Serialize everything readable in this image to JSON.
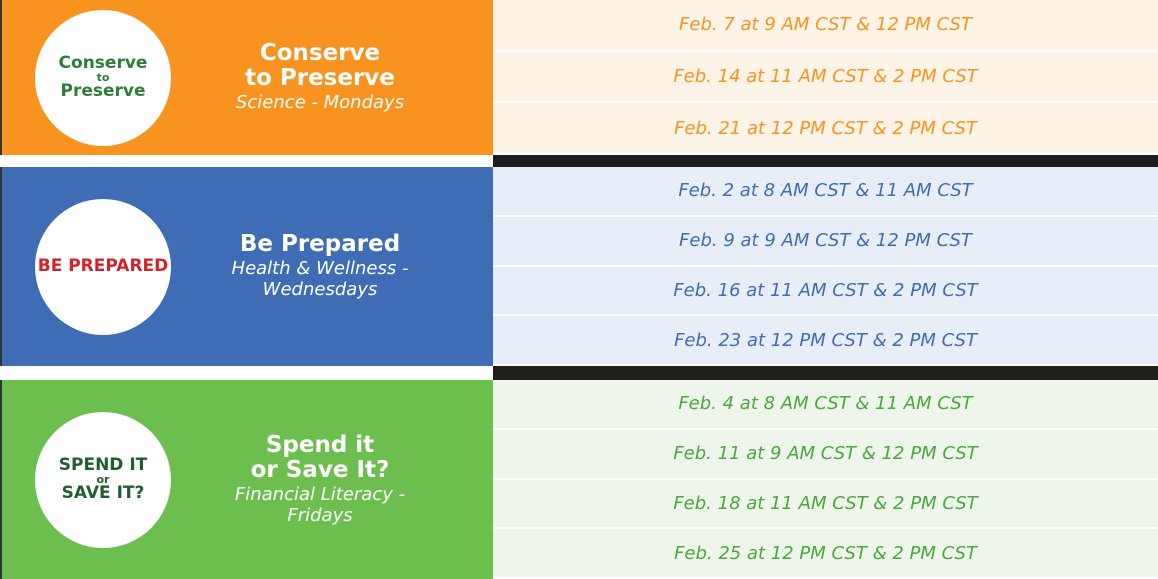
{
  "sections": [
    {
      "logo_lines": [
        "Conserve",
        "to",
        "Preserve"
      ],
      "title_lines": [
        "Conserve",
        "to Preserve"
      ],
      "subtitle": "Science - Mondays",
      "dates": [
        "Feb. 7 at 9 AM CST & 12 PM CST",
        "Feb. 14 at 11 AM CST & 2 PM CST",
        "Feb. 21 at 12 PM CST & 2 PM CST"
      ]
    },
    {
      "logo_lines": [
        "BE PREPARED"
      ],
      "title_lines": [
        "Be Prepared"
      ],
      "subtitle": "Health & Wellness - Wednesdays",
      "dates": [
        "Feb. 2 at 8 AM CST & 11 AM CST",
        "Feb. 9 at 9 AM CST & 12 PM CST",
        "Feb. 16 at 11 AM CST & 2 PM CST",
        "Feb. 23 at 12 PM CST & 2 PM CST"
      ]
    },
    {
      "logo_lines": [
        "SPEND IT",
        "or",
        "SAVE IT?"
      ],
      "title_lines": [
        "Spend it",
        "or Save It?"
      ],
      "subtitle": "Financial Literacy - Fridays",
      "dates": [
        "Feb. 4 at 8 AM CST & 11 AM CST",
        "Feb. 11 at 9 AM CST & 12 PM CST",
        "Feb. 18 at 11 AM CST & 2 PM CST",
        "Feb. 25 at 12 PM CST & 2 PM CST"
      ]
    }
  ]
}
